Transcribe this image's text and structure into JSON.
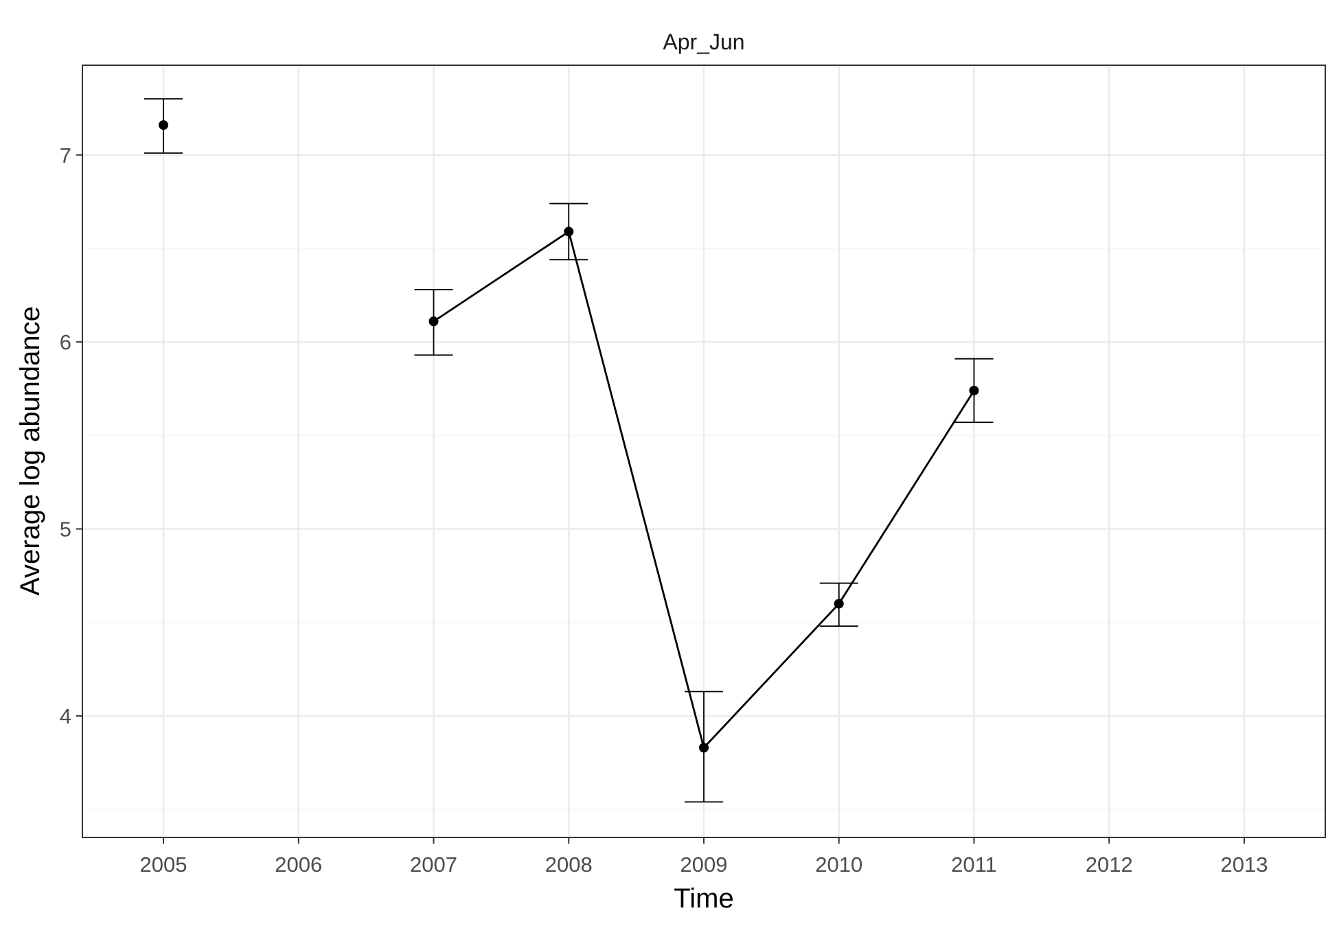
{
  "chart_data": {
    "type": "line",
    "title": "Apr_Jun",
    "xlabel": "Time",
    "ylabel": "Average log abundance",
    "xlim": [
      2004.4,
      2013.6
    ],
    "ylim": [
      3.35,
      7.48
    ],
    "x_ticks": [
      2005,
      2006,
      2007,
      2008,
      2009,
      2010,
      2011,
      2012,
      2013
    ],
    "y_ticks": [
      4,
      5,
      6,
      7
    ],
    "y_minor_ticks": [
      3.5,
      4.5,
      5.5,
      6.5
    ],
    "grid": true,
    "legend": "none",
    "series": [
      {
        "x": [
          2005,
          2007,
          2008,
          2009,
          2010,
          2011
        ],
        "y": [
          7.16,
          6.11,
          6.59,
          3.83,
          4.6,
          5.74
        ],
        "y_lower": [
          7.01,
          5.93,
          6.44,
          3.54,
          4.48,
          5.57
        ],
        "y_upper": [
          7.3,
          6.28,
          6.74,
          4.13,
          4.71,
          5.91
        ],
        "segments": [
          [
            2007,
            2008,
            2009,
            2010,
            2011
          ]
        ]
      }
    ],
    "colors": {
      "line": "#000000",
      "point": "#000000",
      "errorbar": "#000000",
      "grid_major": "#ebebeb",
      "grid_minor": "#f5f5f5",
      "panel_border": "#333333",
      "tick_text": "#4d4d4d"
    }
  }
}
